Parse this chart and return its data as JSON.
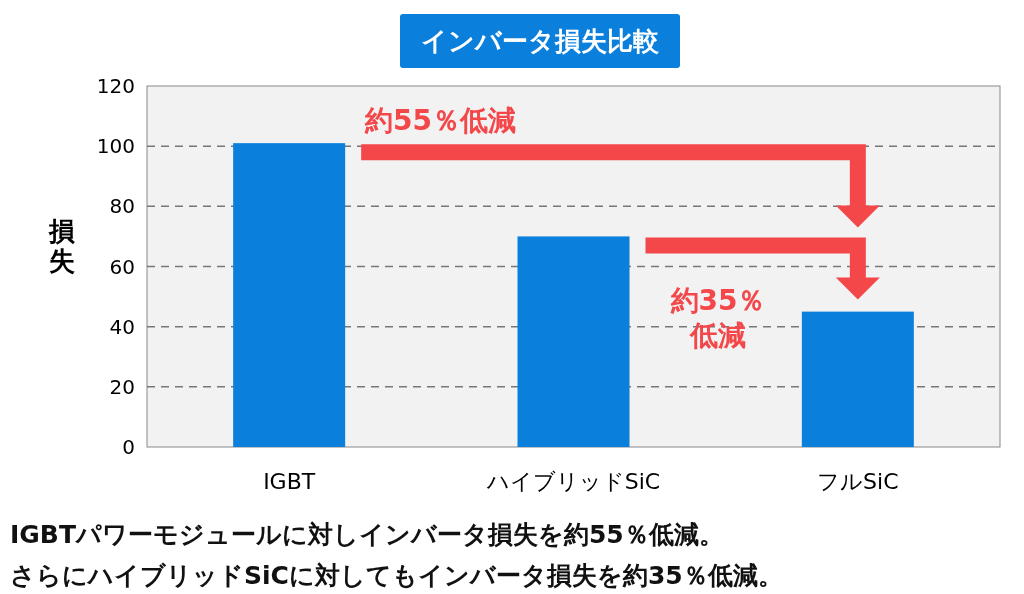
{
  "chart_data": {
    "type": "bar",
    "title": "インバータ損失比較",
    "ylabel": "損失",
    "categories": [
      "IGBT",
      "ハイブリッドSiC",
      "フルSiC"
    ],
    "values": [
      101,
      70,
      45
    ],
    "color": "#0a7fdc",
    "ylim": [
      0,
      120
    ],
    "yticks": [
      0,
      20,
      40,
      60,
      80,
      100,
      120
    ],
    "grid": "y",
    "annotations": [
      "約55％低減",
      "約35％低減",
      "IGBTパワーモジュールに対しインバータ損失を約55％低減。",
      "さらにハイブリッドSiCに対してもインバータ損失を約35％低減。"
    ]
  }
}
